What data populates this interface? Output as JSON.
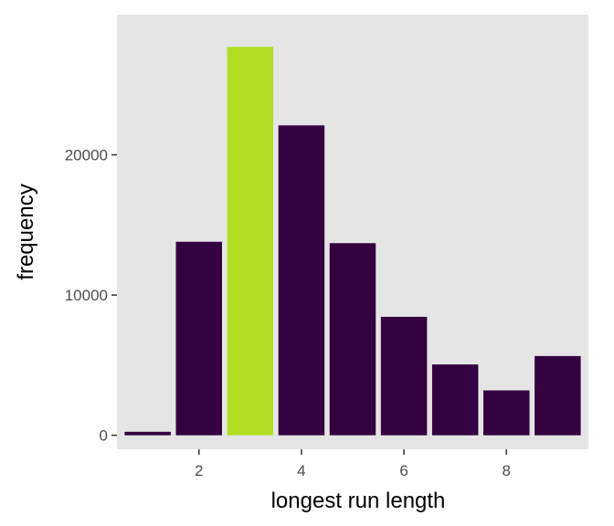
{
  "chart_data": {
    "type": "bar",
    "x": [
      1,
      2,
      3,
      4,
      5,
      6,
      7,
      8,
      9
    ],
    "values": [
      250,
      13800,
      27700,
      22100,
      13700,
      8450,
      5050,
      3200,
      5650
    ],
    "highlight_x": 3,
    "xlabel": "longest run length",
    "ylabel": "frequency",
    "x_ticks": [
      2,
      4,
      6,
      8
    ],
    "y_ticks": [
      0,
      10000,
      20000
    ],
    "xlim": [
      0.4,
      9.6
    ],
    "ylim": [
      -1000,
      30000
    ],
    "grid": false,
    "colors": {
      "bar": "#330040",
      "highlight": "#b0dd22",
      "panel": "#e5e5e5"
    }
  }
}
